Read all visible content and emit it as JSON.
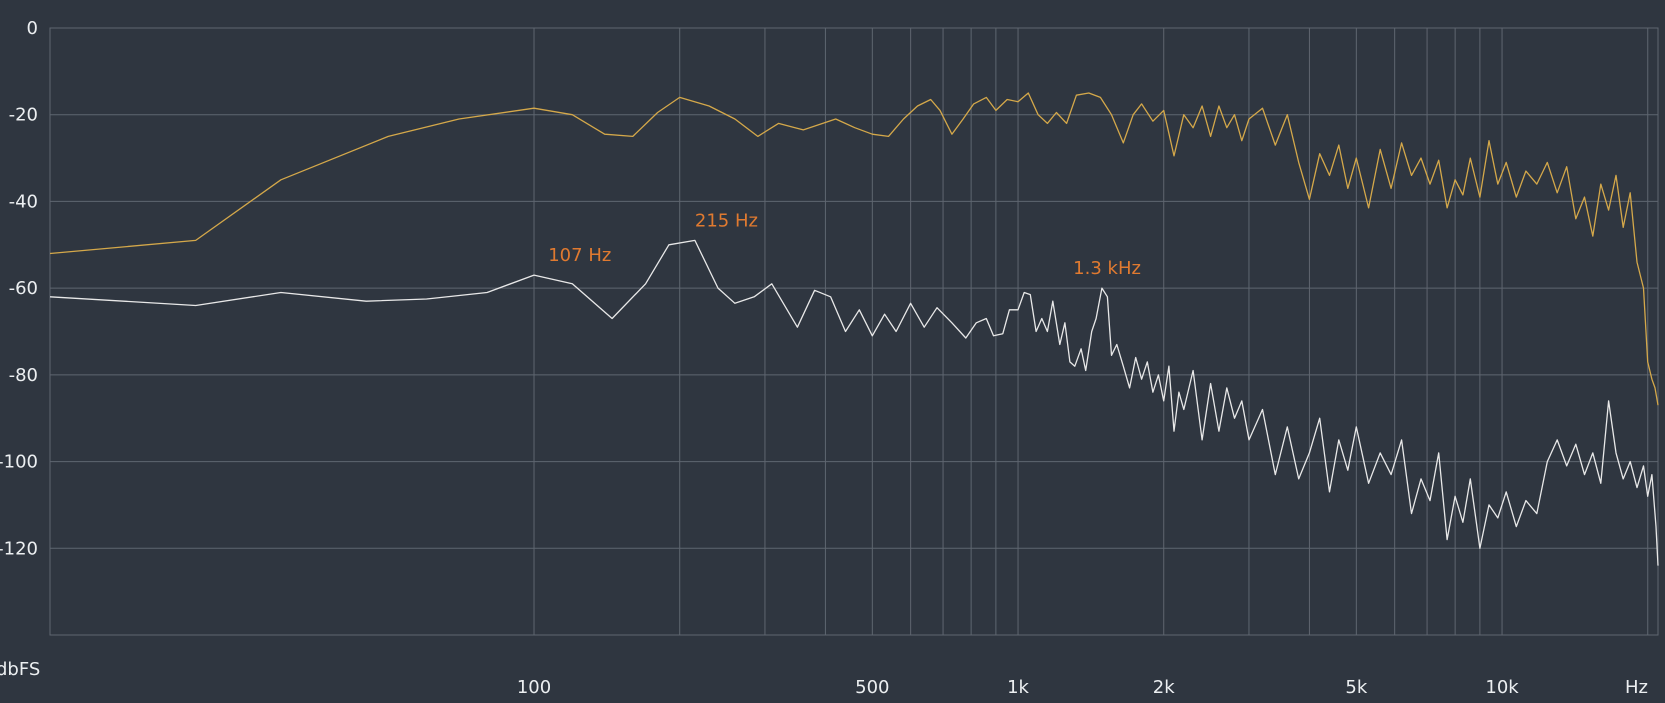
{
  "chart_data": {
    "type": "line",
    "ylabel": "dbFS",
    "xlabel": "Hz",
    "x_scale": "log",
    "xlim": [
      10,
      21000
    ],
    "ylim": [
      -140,
      0
    ],
    "grid": true,
    "y_ticks": [
      {
        "value": 0,
        "label": "0"
      },
      {
        "value": -20,
        "label": "-20"
      },
      {
        "value": -40,
        "label": "-40"
      },
      {
        "value": -60,
        "label": "-60"
      },
      {
        "value": -80,
        "label": "-80"
      },
      {
        "value": -100,
        "label": "-100"
      },
      {
        "value": -120,
        "label": "-120"
      }
    ],
    "x_ticks": [
      {
        "value": 100,
        "label": "100"
      },
      {
        "value": 500,
        "label": "500"
      },
      {
        "value": 1000,
        "label": "1k"
      },
      {
        "value": 2000,
        "label": "2k"
      },
      {
        "value": 5000,
        "label": "5k"
      },
      {
        "value": 10000,
        "label": "10k"
      }
    ],
    "x_gridlines": [
      100,
      200,
      300,
      400,
      500,
      600,
      700,
      800,
      900,
      1000,
      2000,
      3000,
      4000,
      5000,
      6000,
      7000,
      8000,
      9000,
      10000,
      20000
    ],
    "series": [
      {
        "color": "#d4a84a",
        "points": [
          [
            10,
            -52
          ],
          [
            20,
            -49
          ],
          [
            30,
            -35
          ],
          [
            50,
            -25
          ],
          [
            70,
            -21
          ],
          [
            100,
            -18.5
          ],
          [
            120,
            -20
          ],
          [
            140,
            -24.5
          ],
          [
            160,
            -25
          ],
          [
            180,
            -19.5
          ],
          [
            200,
            -16
          ],
          [
            230,
            -18
          ],
          [
            260,
            -21
          ],
          [
            290,
            -25
          ],
          [
            320,
            -22
          ],
          [
            360,
            -23.5
          ],
          [
            420,
            -21
          ],
          [
            460,
            -23
          ],
          [
            500,
            -24.5
          ],
          [
            540,
            -25
          ],
          [
            580,
            -21
          ],
          [
            620,
            -18
          ],
          [
            660,
            -16.5
          ],
          [
            690,
            -19
          ],
          [
            730,
            -24.5
          ],
          [
            770,
            -21
          ],
          [
            810,
            -17.5
          ],
          [
            860,
            -16
          ],
          [
            900,
            -19
          ],
          [
            950,
            -16.5
          ],
          [
            1000,
            -17
          ],
          [
            1050,
            -15
          ],
          [
            1100,
            -20
          ],
          [
            1150,
            -22
          ],
          [
            1200,
            -19.5
          ],
          [
            1260,
            -22
          ],
          [
            1320,
            -15.5
          ],
          [
            1400,
            -15
          ],
          [
            1480,
            -16
          ],
          [
            1560,
            -20
          ],
          [
            1650,
            -26.5
          ],
          [
            1730,
            -20
          ],
          [
            1800,
            -17.5
          ],
          [
            1900,
            -21.5
          ],
          [
            2000,
            -19
          ],
          [
            2100,
            -29.5
          ],
          [
            2200,
            -20
          ],
          [
            2300,
            -23
          ],
          [
            2400,
            -18
          ],
          [
            2500,
            -25
          ],
          [
            2600,
            -18
          ],
          [
            2700,
            -23
          ],
          [
            2800,
            -20
          ],
          [
            2900,
            -26
          ],
          [
            3000,
            -21
          ],
          [
            3200,
            -18.5
          ],
          [
            3400,
            -27
          ],
          [
            3600,
            -20
          ],
          [
            3800,
            -31
          ],
          [
            4000,
            -39.5
          ],
          [
            4200,
            -29
          ],
          [
            4400,
            -34
          ],
          [
            4600,
            -27
          ],
          [
            4800,
            -37
          ],
          [
            5000,
            -30
          ],
          [
            5300,
            -41.5
          ],
          [
            5600,
            -28
          ],
          [
            5900,
            -37
          ],
          [
            6200,
            -26.5
          ],
          [
            6500,
            -34
          ],
          [
            6800,
            -30
          ],
          [
            7100,
            -36
          ],
          [
            7400,
            -30.5
          ],
          [
            7700,
            -41.5
          ],
          [
            8000,
            -35
          ],
          [
            8300,
            -38.5
          ],
          [
            8600,
            -30
          ],
          [
            9000,
            -39
          ],
          [
            9400,
            -26
          ],
          [
            9800,
            -36
          ],
          [
            10200,
            -31
          ],
          [
            10700,
            -39
          ],
          [
            11200,
            -33
          ],
          [
            11800,
            -36
          ],
          [
            12400,
            -31
          ],
          [
            13000,
            -38
          ],
          [
            13600,
            -32
          ],
          [
            14200,
            -44
          ],
          [
            14800,
            -39
          ],
          [
            15400,
            -48
          ],
          [
            16000,
            -36
          ],
          [
            16600,
            -42
          ],
          [
            17200,
            -34
          ],
          [
            17800,
            -46
          ],
          [
            18400,
            -38
          ],
          [
            19000,
            -54
          ],
          [
            19600,
            -60
          ],
          [
            20000,
            -77
          ],
          [
            20400,
            -81
          ],
          [
            20700,
            -83
          ],
          [
            21000,
            -87
          ]
        ]
      },
      {
        "color": "#e8e8e8",
        "points": [
          [
            10,
            -62
          ],
          [
            20,
            -64
          ],
          [
            30,
            -61
          ],
          [
            45,
            -63
          ],
          [
            60,
            -62.5
          ],
          [
            80,
            -61
          ],
          [
            100,
            -57
          ],
          [
            120,
            -59
          ],
          [
            145,
            -67
          ],
          [
            170,
            -59
          ],
          [
            190,
            -50
          ],
          [
            215,
            -49
          ],
          [
            240,
            -60
          ],
          [
            260,
            -63.5
          ],
          [
            285,
            -62
          ],
          [
            310,
            -59
          ],
          [
            350,
            -69
          ],
          [
            380,
            -60.5
          ],
          [
            410,
            -62
          ],
          [
            440,
            -70
          ],
          [
            470,
            -65
          ],
          [
            500,
            -71
          ],
          [
            530,
            -66
          ],
          [
            560,
            -70
          ],
          [
            600,
            -63.5
          ],
          [
            640,
            -69
          ],
          [
            680,
            -64.5
          ],
          [
            730,
            -68
          ],
          [
            780,
            -71.5
          ],
          [
            820,
            -68
          ],
          [
            860,
            -67
          ],
          [
            890,
            -71
          ],
          [
            930,
            -70.5
          ],
          [
            960,
            -65
          ],
          [
            1000,
            -65
          ],
          [
            1030,
            -61
          ],
          [
            1060,
            -61.5
          ],
          [
            1090,
            -70
          ],
          [
            1120,
            -67
          ],
          [
            1150,
            -70
          ],
          [
            1180,
            -63
          ],
          [
            1220,
            -73
          ],
          [
            1250,
            -68
          ],
          [
            1280,
            -77
          ],
          [
            1310,
            -78
          ],
          [
            1350,
            -74
          ],
          [
            1380,
            -79
          ],
          [
            1420,
            -70
          ],
          [
            1450,
            -67
          ],
          [
            1490,
            -60
          ],
          [
            1530,
            -62
          ],
          [
            1560,
            -75.5
          ],
          [
            1600,
            -73
          ],
          [
            1650,
            -78
          ],
          [
            1700,
            -83
          ],
          [
            1750,
            -76
          ],
          [
            1800,
            -81
          ],
          [
            1850,
            -77
          ],
          [
            1900,
            -84
          ],
          [
            1950,
            -80
          ],
          [
            2000,
            -86
          ],
          [
            2050,
            -78
          ],
          [
            2100,
            -93
          ],
          [
            2150,
            -84
          ],
          [
            2200,
            -88
          ],
          [
            2300,
            -79
          ],
          [
            2400,
            -95
          ],
          [
            2500,
            -82
          ],
          [
            2600,
            -93
          ],
          [
            2700,
            -83
          ],
          [
            2800,
            -90
          ],
          [
            2900,
            -86
          ],
          [
            3000,
            -95
          ],
          [
            3200,
            -88
          ],
          [
            3400,
            -103
          ],
          [
            3600,
            -92
          ],
          [
            3800,
            -104
          ],
          [
            4000,
            -98
          ],
          [
            4200,
            -90
          ],
          [
            4400,
            -107
          ],
          [
            4600,
            -95
          ],
          [
            4800,
            -102
          ],
          [
            5000,
            -92
          ],
          [
            5300,
            -105
          ],
          [
            5600,
            -98
          ],
          [
            5900,
            -103
          ],
          [
            6200,
            -95
          ],
          [
            6500,
            -112
          ],
          [
            6800,
            -104
          ],
          [
            7100,
            -109
          ],
          [
            7400,
            -98
          ],
          [
            7700,
            -118
          ],
          [
            8000,
            -108
          ],
          [
            8300,
            -114
          ],
          [
            8600,
            -104
          ],
          [
            9000,
            -120
          ],
          [
            9400,
            -110
          ],
          [
            9800,
            -113
          ],
          [
            10200,
            -107
          ],
          [
            10700,
            -115
          ],
          [
            11200,
            -109
          ],
          [
            11800,
            -112
          ],
          [
            12400,
            -100
          ],
          [
            13000,
            -95
          ],
          [
            13600,
            -101
          ],
          [
            14200,
            -96
          ],
          [
            14800,
            -103
          ],
          [
            15400,
            -98
          ],
          [
            16000,
            -105
          ],
          [
            16600,
            -86
          ],
          [
            17200,
            -98
          ],
          [
            17800,
            -104
          ],
          [
            18400,
            -100
          ],
          [
            19000,
            -106
          ],
          [
            19600,
            -101
          ],
          [
            20000,
            -108
          ],
          [
            20400,
            -103
          ],
          [
            20800,
            -115
          ],
          [
            21000,
            -124
          ]
        ]
      }
    ],
    "annotations": [
      {
        "label": "107 Hz",
        "x": 107,
        "y": -57
      },
      {
        "label": "215 Hz",
        "x": 215,
        "y": -49
      },
      {
        "label": "1.3  kHz",
        "x": 1300,
        "y": -60
      }
    ],
    "colors": {
      "background": "#2f3640",
      "grid": "#5f6670",
      "text": "#eceff1",
      "annotation": "#e07a30"
    }
  }
}
